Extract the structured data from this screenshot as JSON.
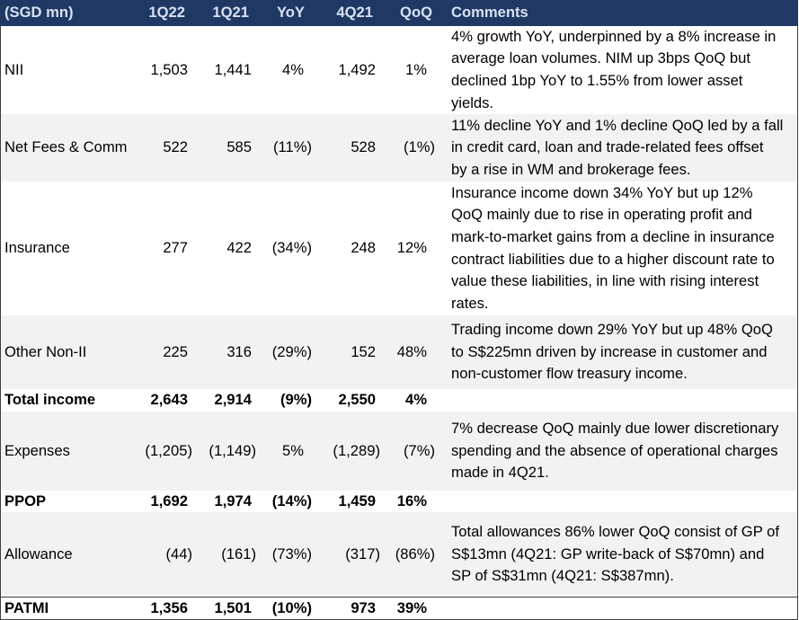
{
  "colors": {
    "header_background": "#1F3864",
    "header_text": "#D9E1F2",
    "alternate_row_background": "#F2F2F2",
    "rule": "#404040",
    "text": "#000000"
  },
  "table": {
    "columns": [
      "(SGD mn)",
      "1Q22",
      "1Q21",
      "YoY",
      "4Q21",
      "QoQ",
      "Comments"
    ],
    "rows": [
      {
        "label": "NII",
        "values": [
          "1,503",
          "1,441",
          "4%",
          "1,492",
          "1%"
        ],
        "comment": [
          "4% growth YoY, underpinned by a 8% increase in",
          "average loan volumes. NIM up 3bps QoQ but",
          "declined 1bp YoY to 1.55% from lower asset",
          "yields."
        ]
      },
      {
        "label": "Net Fees & Comm",
        "values": [
          "522",
          "585",
          "(11%)",
          "528",
          "(1%)"
        ],
        "comment": [
          "11% decline YoY and 1% decline QoQ led by a fall",
          "in credit card, loan and trade-related fees offset",
          "by a rise in WM and brokerage fees."
        ]
      },
      {
        "label": "Insurance",
        "values": [
          "277",
          "422",
          "(34%)",
          "248",
          "12%"
        ],
        "comment": [
          "Insurance income down 34% YoY but up 12%",
          "QoQ mainly due to rise in operating profit and",
          "mark-to-market gains from a decline in insurance",
          "contract liabilities due to a higher discount rate to",
          "value these liabilities, in line with rising interest",
          "rates."
        ]
      },
      {
        "label": "Other Non-II",
        "values": [
          "225",
          "316",
          "(29%)",
          "152",
          "48%"
        ],
        "comment": [
          "Trading income down 29% YoY but up 48% QoQ",
          "to S$225mn driven by increase in customer and",
          "non-customer flow treasury income."
        ]
      },
      {
        "label": "Total income",
        "values": [
          "2,643",
          "2,914",
          "(9%)",
          "2,550",
          "4%"
        ]
      },
      {
        "label": "Expenses",
        "values": [
          "(1,205)",
          "(1,149)",
          "5%",
          "(1,289)",
          "(7%)"
        ],
        "comment": [
          "7% decrease QoQ mainly due lower discretionary",
          "spending and the absence of operational charges",
          "made in 4Q21."
        ]
      },
      {
        "label": "PPOP",
        "values": [
          "1,692",
          "1,974",
          "(14%)",
          "1,459",
          "16%"
        ]
      },
      {
        "label": "Allowance",
        "values": [
          "(44)",
          "(161)",
          "(73%)",
          "(317)",
          "(86%)"
        ],
        "comment": [
          "Total allowances 86% lower QoQ consist of GP of",
          "S$13mn (4Q21: GP write-back of S$70mn) and",
          "SP of S$31mn (4Q21: S$387mn)."
        ]
      },
      {
        "label": "PATMI",
        "values": [
          "1,356",
          "1,501",
          "(10%)",
          "973",
          "39%"
        ]
      }
    ]
  }
}
